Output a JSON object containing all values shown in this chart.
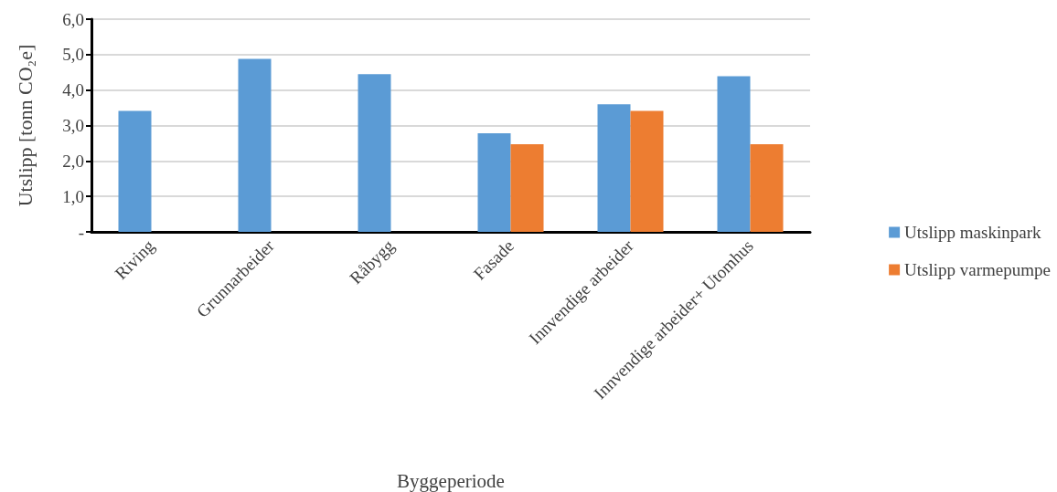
{
  "chart_data": {
    "type": "bar",
    "xlabel": "Byggeperiode",
    "ylabel": "Utslipp [tonn CO₂e]",
    "categories": [
      "Riving",
      "Grunnarbeider",
      "Råbygg",
      "Fasade",
      "Innvendige arbeider",
      "Innvendige arbeider+ Utomhus"
    ],
    "series": [
      {
        "name": "Utslipp maskinpark",
        "color": "#5b9bd5",
        "values": [
          3.41,
          4.88,
          4.45,
          2.78,
          3.6,
          4.39
        ]
      },
      {
        "name": "Utslipp varmepumpe",
        "color": "#ed7d31",
        "values": [
          null,
          null,
          null,
          2.47,
          3.41,
          2.47
        ]
      }
    ],
    "ylim": [
      0,
      6
    ],
    "yticks": [
      {
        "value": 0,
        "label": "-"
      },
      {
        "value": 1,
        "label": "1,0"
      },
      {
        "value": 2,
        "label": "2,0"
      },
      {
        "value": 3,
        "label": "3,0"
      },
      {
        "value": 4,
        "label": "4,0"
      },
      {
        "value": 5,
        "label": "5,0"
      },
      {
        "value": 6,
        "label": "6,0"
      }
    ],
    "grid": "y",
    "legend": "right"
  }
}
